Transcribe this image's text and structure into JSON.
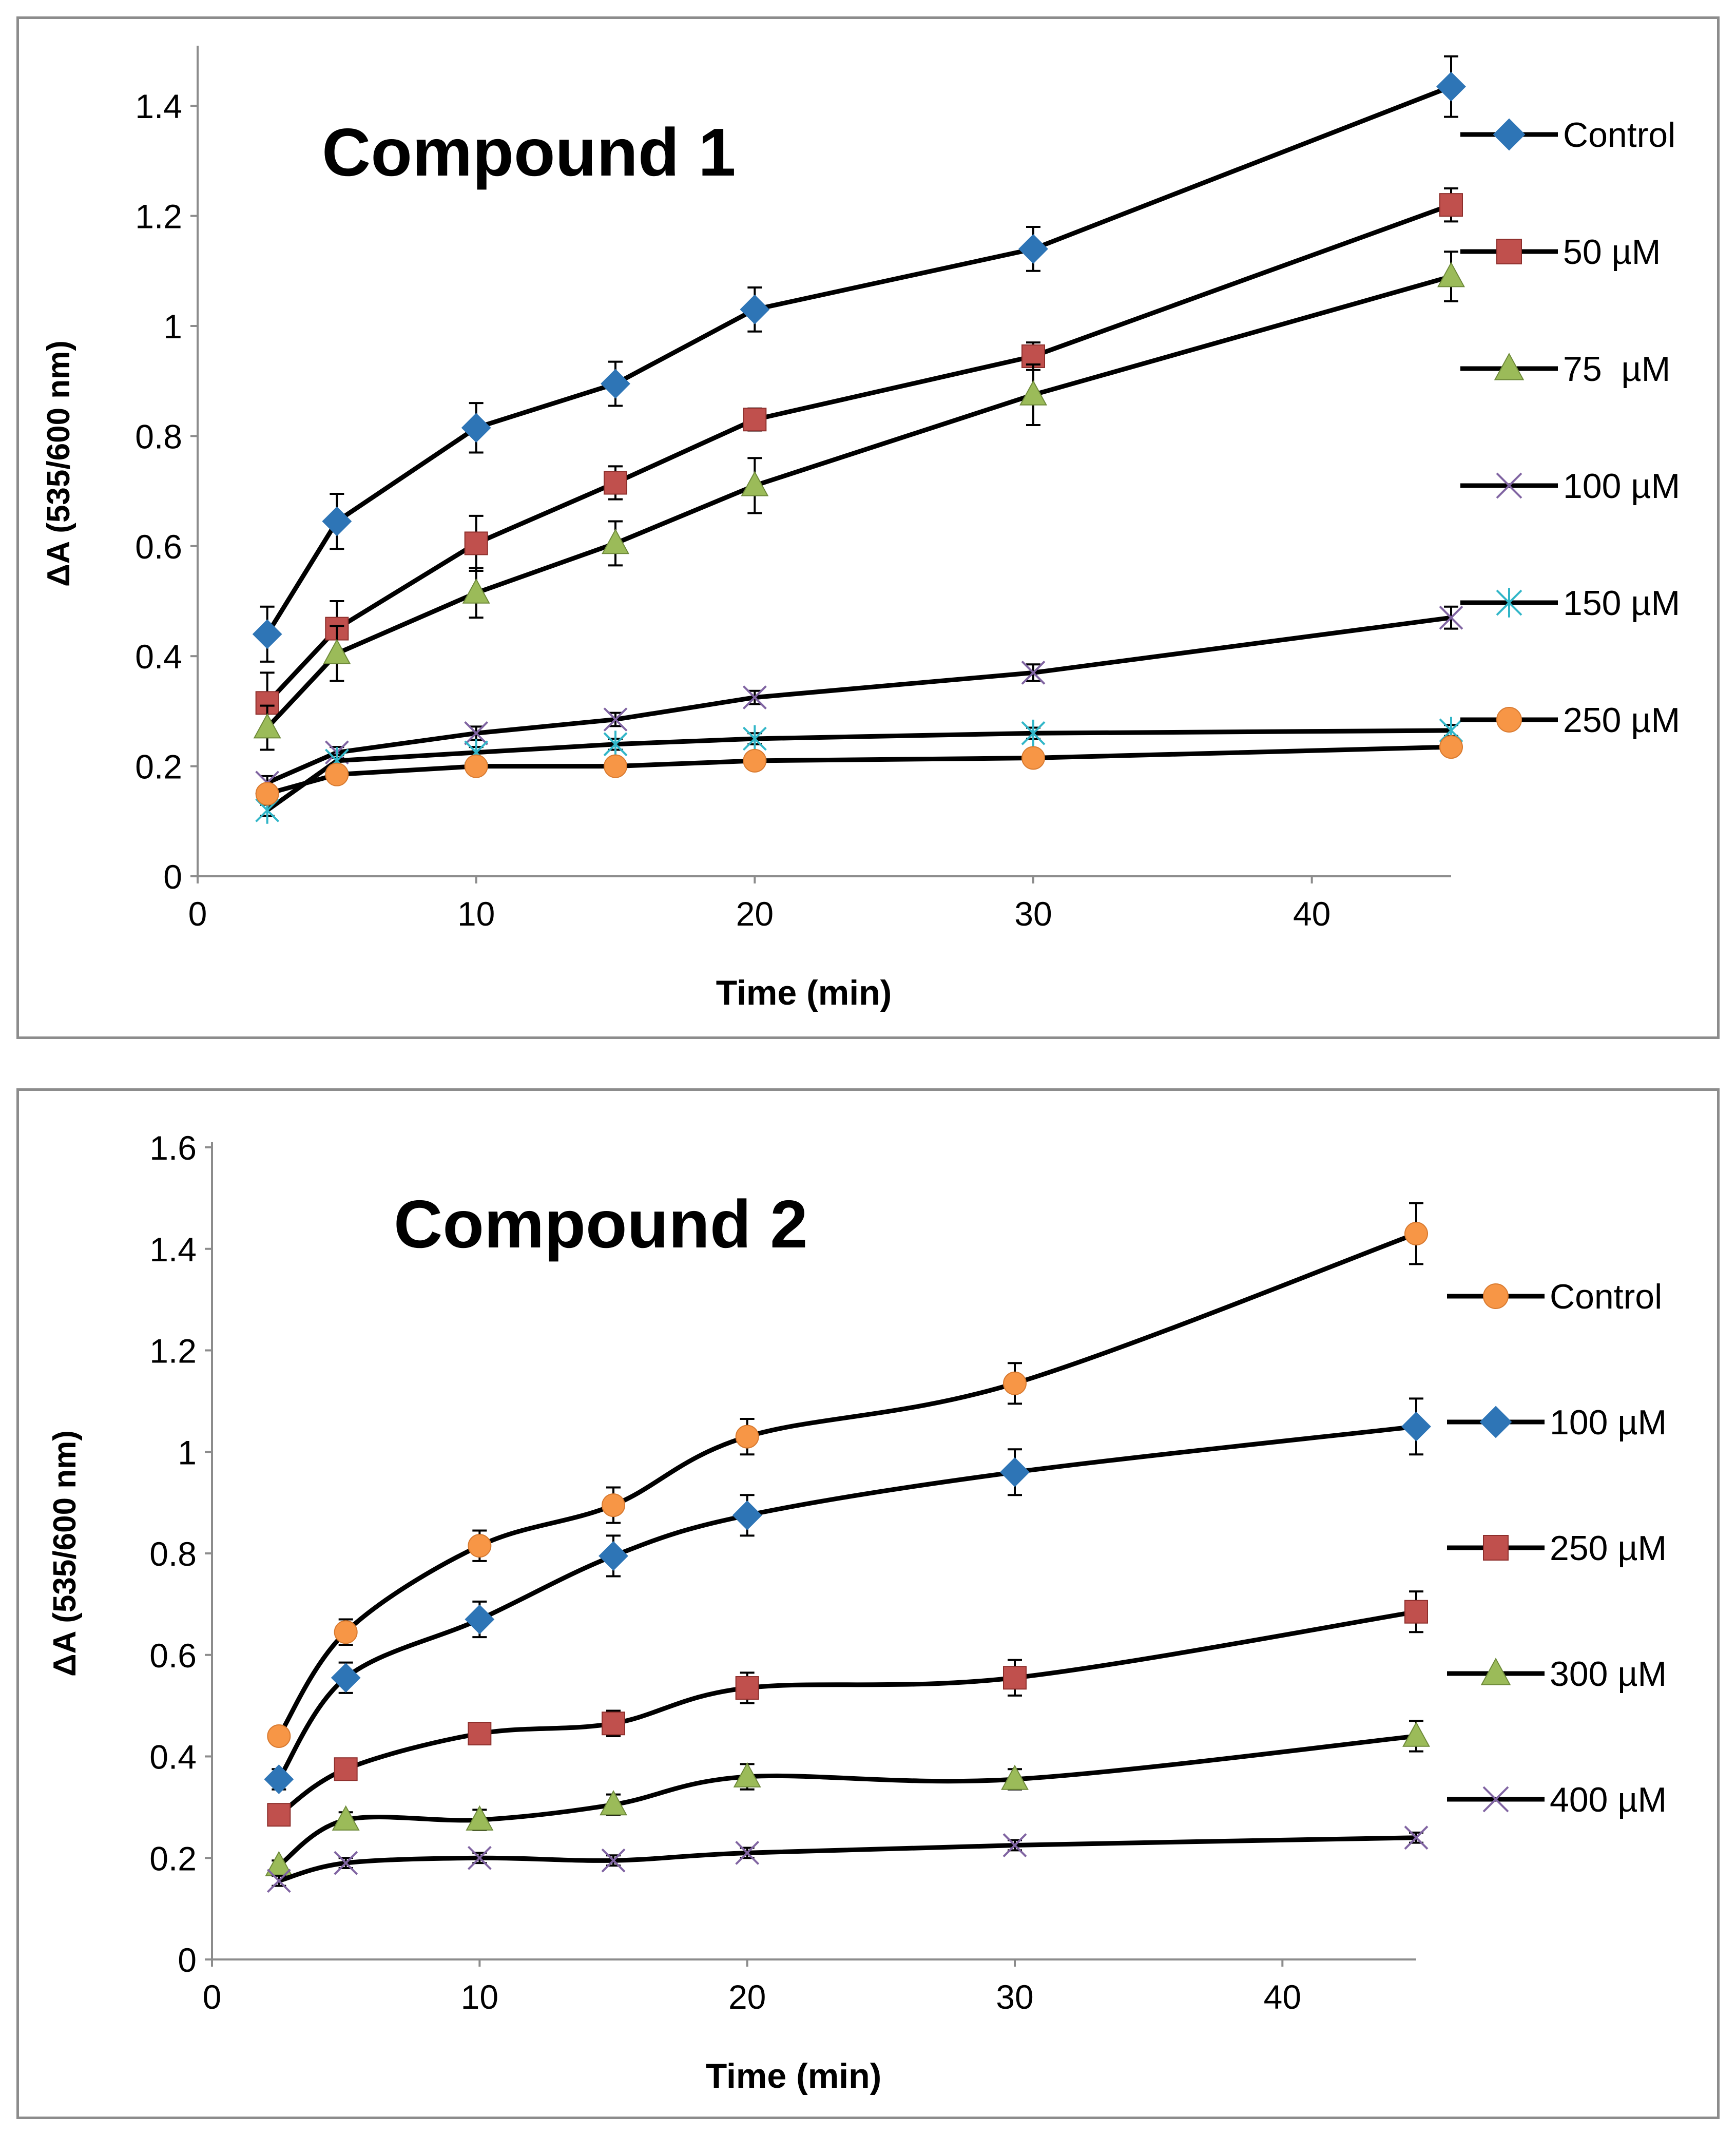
{
  "chart_data": [
    {
      "type": "line",
      "title": "Compound 1",
      "xlabel": "Time (min)",
      "ylabel": "ΔA (535/600 nm)",
      "xlim": [
        0,
        45
      ],
      "ylim": [
        0,
        1.5
      ],
      "xticks": [
        "0",
        "10",
        "20",
        "30",
        "40"
      ],
      "xtick_values": [
        0,
        10,
        20,
        30,
        40
      ],
      "yticks": [
        "0",
        "0.2",
        "0.4",
        "0.6",
        "0.8",
        "1",
        "1.2",
        "1.4"
      ],
      "ytick_values": [
        0,
        0.2,
        0.4,
        0.6,
        0.8,
        1.0,
        1.2,
        1.4
      ],
      "grid": false,
      "legend_position": "right",
      "x": [
        2.5,
        5,
        10,
        15,
        20,
        30,
        45
      ],
      "series": [
        {
          "name": "Control",
          "marker": "diamond",
          "color": "#2e75b6",
          "values": [
            0.44,
            0.645,
            0.815,
            0.895,
            1.03,
            1.14,
            1.435
          ],
          "errors": [
            0.05,
            0.05,
            0.045,
            0.04,
            0.04,
            0.04,
            0.055
          ]
        },
        {
          "name": "50 µM",
          "marker": "square",
          "color": "#c0504d",
          "values": [
            0.315,
            0.45,
            0.605,
            0.715,
            0.83,
            0.945,
            1.22
          ],
          "errors": [
            0.055,
            0.05,
            0.05,
            0.03,
            0.02,
            0.025,
            0.03
          ]
        },
        {
          "name": "75  µM",
          "marker": "triangle",
          "color": "#9bbb59",
          "values": [
            0.27,
            0.405,
            0.515,
            0.605,
            0.71,
            0.875,
            1.09
          ],
          "errors": [
            0.04,
            0.05,
            0.045,
            0.04,
            0.05,
            0.055,
            0.045
          ]
        },
        {
          "name": "100 µM",
          "marker": "x",
          "color": "#8064a2",
          "values": [
            0.17,
            0.225,
            0.26,
            0.285,
            0.325,
            0.37,
            0.47
          ],
          "errors": [
            0.012,
            0.01,
            0.012,
            0.012,
            0.012,
            0.015,
            0.02
          ]
        },
        {
          "name": "150 µM",
          "marker": "star",
          "color": "#31b6c8",
          "values": [
            0.12,
            0.21,
            0.225,
            0.24,
            0.25,
            0.26,
            0.265
          ],
          "errors": [
            0.01,
            0.01,
            0.01,
            0.01,
            0.01,
            0.01,
            0.01
          ]
        },
        {
          "name": "250 µM",
          "marker": "circle",
          "color": "#f79646",
          "values": [
            0.15,
            0.185,
            0.2,
            0.2,
            0.21,
            0.215,
            0.235
          ],
          "errors": [
            0.01,
            0.01,
            0.01,
            0.01,
            0.01,
            0.01,
            0.01
          ]
        }
      ]
    },
    {
      "type": "line",
      "title": "Compound 2",
      "xlabel": "Time (min)",
      "ylabel": "ΔA (535/600 nm)",
      "xlim": [
        0,
        45
      ],
      "ylim": [
        0,
        1.6
      ],
      "xticks": [
        "0",
        "10",
        "20",
        "30",
        "40"
      ],
      "xtick_values": [
        0,
        10,
        20,
        30,
        40
      ],
      "yticks": [
        "0",
        "0.2",
        "0.4",
        "0.6",
        "0.8",
        "1",
        "1.2",
        "1.4",
        "1.6"
      ],
      "ytick_values": [
        0,
        0.2,
        0.4,
        0.6,
        0.8,
        1.0,
        1.2,
        1.4,
        1.6
      ],
      "grid": false,
      "legend_position": "right",
      "x": [
        2.5,
        5,
        10,
        15,
        20,
        30,
        45
      ],
      "series": [
        {
          "name": "Control",
          "marker": "circle",
          "color": "#f79646",
          "values": [
            0.44,
            0.645,
            0.815,
            0.895,
            1.03,
            1.135,
            1.43
          ],
          "errors": [
            0.015,
            0.025,
            0.03,
            0.035,
            0.035,
            0.04,
            0.06
          ]
        },
        {
          "name": "100 µM",
          "marker": "diamond",
          "color": "#2e75b6",
          "values": [
            0.355,
            0.555,
            0.67,
            0.795,
            0.875,
            0.96,
            1.05
          ],
          "errors": [
            0.02,
            0.03,
            0.035,
            0.04,
            0.04,
            0.045,
            0.055
          ]
        },
        {
          "name": "250 µM",
          "marker": "square",
          "color": "#c0504d",
          "values": [
            0.285,
            0.375,
            0.445,
            0.465,
            0.535,
            0.555,
            0.685
          ],
          "errors": [
            0.01,
            0.015,
            0.02,
            0.025,
            0.03,
            0.035,
            0.04
          ]
        },
        {
          "name": "300 µM",
          "marker": "triangle",
          "color": "#9bbb59",
          "values": [
            0.185,
            0.275,
            0.275,
            0.305,
            0.36,
            0.355,
            0.44
          ],
          "errors": [
            0.01,
            0.015,
            0.02,
            0.02,
            0.025,
            0.02,
            0.03
          ]
        },
        {
          "name": "400 µM",
          "marker": "x",
          "color": "#8064a2",
          "values": [
            0.155,
            0.19,
            0.2,
            0.195,
            0.21,
            0.225,
            0.24
          ],
          "errors": [
            0.01,
            0.01,
            0.01,
            0.01,
            0.01,
            0.01,
            0.01
          ]
        }
      ]
    }
  ]
}
